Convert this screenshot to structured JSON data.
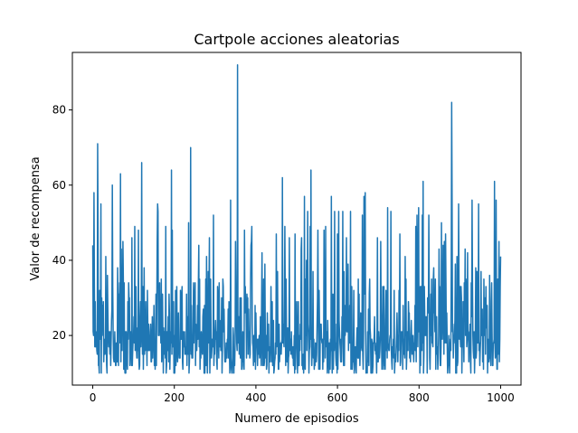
{
  "chart_data": {
    "type": "line",
    "title": "Cartpole acciones aleatorias",
    "xlabel": "Numero de episodios",
    "ylabel": "Valor de recompensa",
    "xlim": [
      -50,
      1050
    ],
    "ylim": [
      6.8,
      95.3
    ],
    "xticks": [
      0,
      200,
      400,
      600,
      800,
      1000
    ],
    "yticks": [
      20,
      40,
      60,
      80
    ],
    "xtick_labels": [
      "0",
      "200",
      "400",
      "600",
      "800",
      "1000"
    ],
    "ytick_labels": [
      "20",
      "40",
      "60",
      "80"
    ],
    "grid": false,
    "legend": "none",
    "series": [
      {
        "color": "#1f77b4",
        "n_points": 1001,
        "x_start": 0,
        "x_end": 1000,
        "min": 8,
        "max": 92,
        "typical_range": [
          10,
          35
        ],
        "notable_peaks": [
          {
            "x": 0,
            "y": 44
          },
          {
            "x": 12,
            "y": 71
          },
          {
            "x": 48,
            "y": 60
          },
          {
            "x": 68,
            "y": 63
          },
          {
            "x": 120,
            "y": 66
          },
          {
            "x": 193,
            "y": 64
          },
          {
            "x": 240,
            "y": 70
          },
          {
            "x": 355,
            "y": 92
          },
          {
            "x": 465,
            "y": 62
          },
          {
            "x": 535,
            "y": 64
          },
          {
            "x": 810,
            "y": 61
          },
          {
            "x": 880,
            "y": 82
          },
          {
            "x": 985,
            "y": 61
          }
        ]
      }
    ]
  }
}
